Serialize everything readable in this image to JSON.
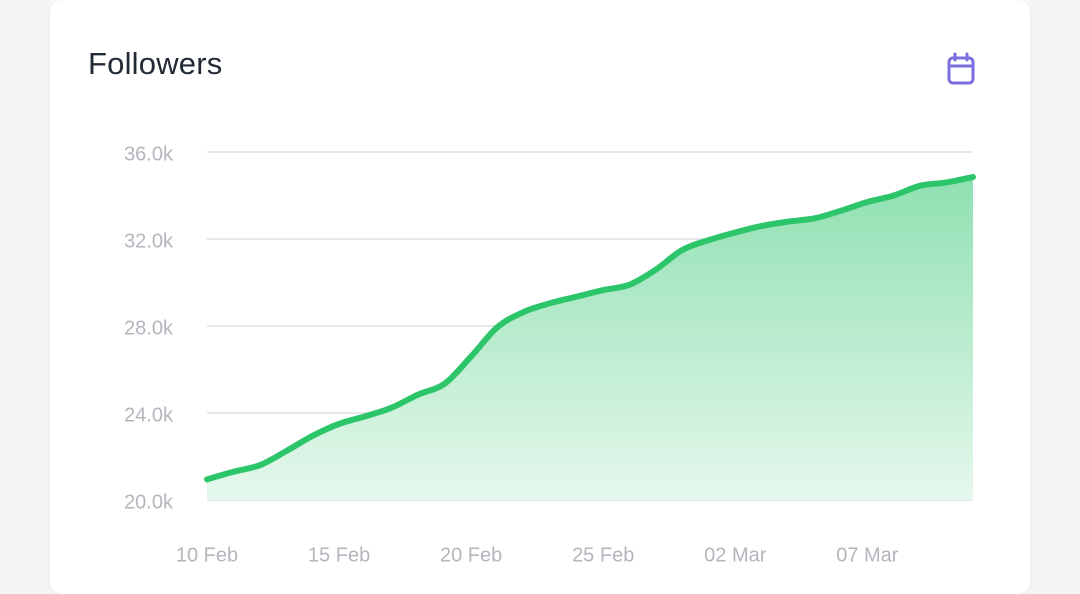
{
  "card": {
    "title": "Followers",
    "action_icon": "calendar-icon"
  },
  "colors": {
    "line": "#2cc56a",
    "area_top": "#8fe0b1",
    "area_bottom": "#e6f8ed",
    "grid": "#e6e7ea",
    "tick_text": "#b3b6bd",
    "icon": "#7b6fe0"
  },
  "chart_data": {
    "type": "area",
    "title": "Followers",
    "xlabel": "",
    "ylabel": "",
    "ylim": [
      20000,
      36000
    ],
    "yticks": [
      20000,
      24000,
      28000,
      32000,
      36000
    ],
    "ytick_labels": [
      "20.0k",
      "24.0k",
      "28.0k",
      "32.0k",
      "36.0k"
    ],
    "xticks": [
      0,
      5,
      10,
      15,
      20,
      25
    ],
    "xtick_labels": [
      "10 Feb",
      "15 Feb",
      "20 Feb",
      "25 Feb",
      "02 Mar",
      "07 Mar"
    ],
    "grid": true,
    "x": [
      "10 Feb",
      "11 Feb",
      "12 Feb",
      "13 Feb",
      "14 Feb",
      "15 Feb",
      "16 Feb",
      "17 Feb",
      "18 Feb",
      "19 Feb",
      "20 Feb",
      "21 Feb",
      "22 Feb",
      "23 Feb",
      "24 Feb",
      "25 Feb",
      "26 Feb",
      "27 Feb",
      "28 Feb",
      "01 Mar",
      "02 Mar",
      "03 Mar",
      "04 Mar",
      "05 Mar",
      "06 Mar",
      "07 Mar",
      "08 Mar",
      "09 Mar",
      "10 Mar",
      "11 Mar"
    ],
    "series": [
      {
        "values": [
          20950,
          21300,
          21600,
          22250,
          22950,
          23500,
          23850,
          24250,
          24850,
          25350,
          26600,
          27950,
          28650,
          29050,
          29350,
          29650,
          29900,
          30600,
          31500,
          31950,
          32300,
          32600,
          32800,
          32950,
          33300,
          33700,
          34000,
          34450,
          34600,
          34850
        ]
      }
    ]
  }
}
